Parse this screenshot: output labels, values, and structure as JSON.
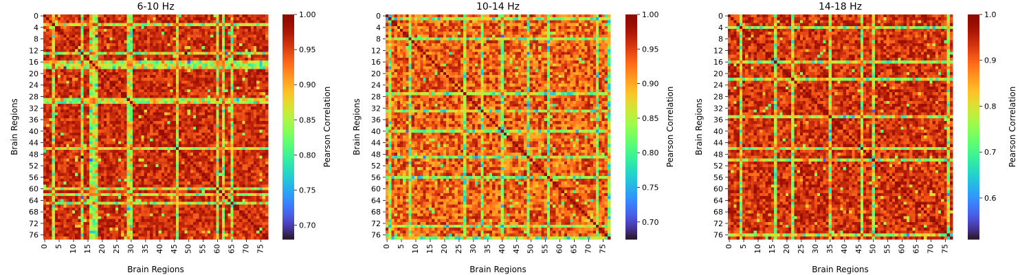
{
  "chart_data": [
    {
      "type": "heatmap",
      "title": "6-10 Hz",
      "xlabel": "Brain Regions",
      "ylabel": "Brain Regions",
      "n": 78,
      "x_ticks": [
        0,
        5,
        10,
        15,
        20,
        25,
        30,
        35,
        40,
        45,
        50,
        55,
        60,
        65,
        70,
        75
      ],
      "y_ticks": [
        0,
        4,
        8,
        12,
        16,
        20,
        24,
        28,
        32,
        36,
        40,
        44,
        48,
        52,
        56,
        60,
        64,
        68,
        72,
        76
      ],
      "vmin": 0.68,
      "vmax": 1.0,
      "colorbar": {
        "label": "Pearson Correlation",
        "ticks": [
          0.7,
          0.75,
          0.8,
          0.85,
          0.9,
          0.95,
          1.0
        ],
        "tick_labels": [
          "0.70",
          "0.75",
          "0.80",
          "0.85",
          "0.90",
          "0.95",
          "1.00"
        ]
      },
      "low_regions": [
        3,
        13,
        16,
        17,
        18,
        29,
        30,
        46,
        60,
        62,
        65
      ],
      "mean_value": 0.96,
      "noise": 0.025,
      "seed": 11
    },
    {
      "type": "heatmap",
      "title": "10-14 Hz",
      "xlabel": "Brain Regions",
      "ylabel": "Brain Regions",
      "n": 78,
      "x_ticks": [
        0,
        5,
        10,
        15,
        20,
        25,
        30,
        35,
        40,
        45,
        50,
        55,
        60,
        65,
        70,
        75
      ],
      "y_ticks": [
        0,
        4,
        8,
        12,
        16,
        20,
        24,
        28,
        32,
        36,
        40,
        44,
        48,
        52,
        56,
        60,
        64,
        68,
        72,
        76
      ],
      "vmin": 0.675,
      "vmax": 1.0,
      "colorbar": {
        "label": "Pearson Correlation",
        "ticks": [
          0.7,
          0.75,
          0.8,
          0.85,
          0.9,
          0.95,
          1.0
        ],
        "tick_labels": [
          "0.70",
          "0.75",
          "0.80",
          "0.85",
          "0.90",
          "0.95",
          "1.00"
        ]
      },
      "low_regions": [
        1,
        8,
        27,
        33,
        40,
        49,
        56,
        73,
        77
      ],
      "mean_value": 0.935,
      "noise": 0.04,
      "seed": 23
    },
    {
      "type": "heatmap",
      "title": "14-18 Hz",
      "xlabel": "Brain Regions",
      "ylabel": "Brain Regions",
      "n": 78,
      "x_ticks": [
        0,
        5,
        10,
        15,
        20,
        25,
        30,
        35,
        40,
        45,
        50,
        55,
        60,
        65,
        70,
        75
      ],
      "y_ticks": [
        0,
        4,
        8,
        12,
        16,
        20,
        24,
        28,
        32,
        36,
        40,
        44,
        48,
        52,
        56,
        60,
        64,
        68,
        72,
        76
      ],
      "vmin": 0.51,
      "vmax": 1.0,
      "colorbar": {
        "label": "Pearson Correlation",
        "ticks": [
          0.6,
          0.7,
          0.8,
          0.9,
          1.0
        ],
        "tick_labels": [
          "0.6",
          "0.7",
          "0.8",
          "0.9",
          "1.0"
        ]
      },
      "low_regions": [
        4,
        16,
        22,
        35,
        46,
        50,
        76
      ],
      "mean_value": 0.935,
      "noise": 0.045,
      "seed": 37
    }
  ]
}
